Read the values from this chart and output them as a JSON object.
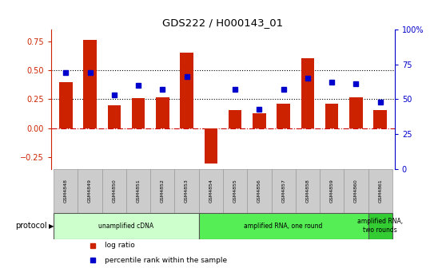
{
  "title": "GDS222 / H000143_01",
  "samples": [
    "GSM4848",
    "GSM4849",
    "GSM4850",
    "GSM4851",
    "GSM4852",
    "GSM4853",
    "GSM4854",
    "GSM4855",
    "GSM4856",
    "GSM4857",
    "GSM4858",
    "GSM4859",
    "GSM4860",
    "GSM4861"
  ],
  "log_ratio": [
    0.4,
    0.76,
    0.2,
    0.26,
    0.27,
    0.65,
    -0.3,
    0.16,
    0.13,
    0.21,
    0.6,
    0.21,
    0.27,
    0.16
  ],
  "percentile": [
    0.69,
    0.69,
    0.53,
    0.6,
    0.57,
    0.66,
    null,
    0.57,
    0.43,
    0.57,
    0.65,
    0.62,
    0.61,
    0.48
  ],
  "bar_color": "#cc2200",
  "dot_color": "#0000cc",
  "ylim_left": [
    -0.35,
    0.85
  ],
  "ylim_right": [
    0,
    100
  ],
  "yticks_left": [
    -0.25,
    0.0,
    0.25,
    0.5,
    0.75
  ],
  "yticks_right": [
    0,
    25,
    50,
    75,
    100
  ],
  "ytick_labels_right": [
    "0",
    "25",
    "50",
    "75",
    "100%"
  ],
  "protocols": [
    {
      "label": "unamplified cDNA",
      "start": 0,
      "end": 5,
      "color": "#ccffcc"
    },
    {
      "label": "amplified RNA, one round",
      "start": 6,
      "end": 12,
      "color": "#55ee55"
    },
    {
      "label": "amplified RNA,\ntwo rounds",
      "start": 13,
      "end": 13,
      "color": "#33cc33"
    }
  ],
  "protocol_label": "protocol",
  "legend_items": [
    {
      "label": "log ratio",
      "color": "#cc2200"
    },
    {
      "label": "percentile rank within the sample",
      "color": "#0000cc"
    }
  ],
  "background_color": "#ffffff"
}
